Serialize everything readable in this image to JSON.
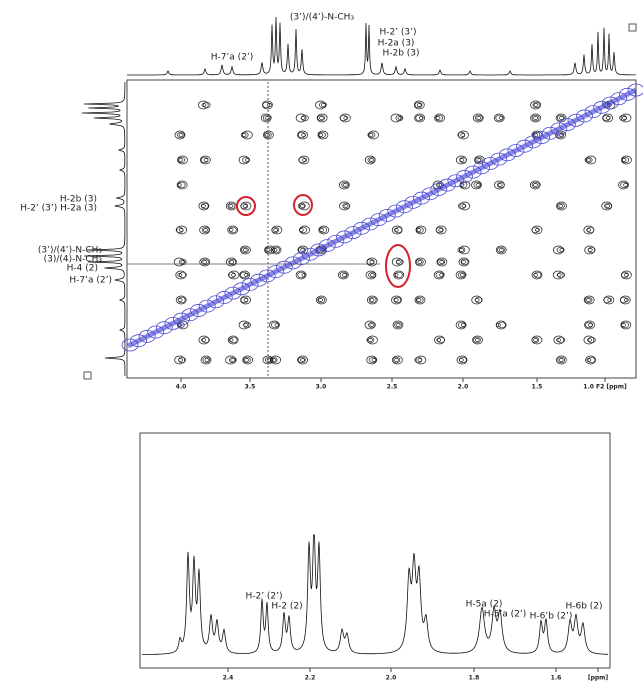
{
  "top_panel": {
    "peak_labels": [
      "(3’)/(4’)-N-CH₃",
      "H-7’a (2’)",
      "H-2’ (3’)",
      "H-2a (3)",
      "H-2b (3)"
    ],
    "left_labels": [
      "H-2b (3)",
      "H-2’ (3’) H-2a (3)",
      "(3’)/(4’)-N-CH₃",
      "(3)/(4)-N-CH₃",
      "H-4 (2)",
      "H-7’a (2’)"
    ],
    "x_ticks": [
      "4.0",
      "3.5",
      "3.0",
      "2.5",
      "2.0",
      "1.5",
      "1.0 F2 [ppm]"
    ]
  },
  "bottom_panel": {
    "peak_labels": [
      "H-2’ (2’)",
      "H-2 (2)",
      "H-5a (2)",
      "H-5’a (2’)",
      "H-6’b (2’)",
      "H-6b (2)"
    ],
    "x_ticks": [
      "2.4",
      "2.2",
      "2.0",
      "1.8",
      "1.6",
      "[ppm]"
    ]
  }
}
